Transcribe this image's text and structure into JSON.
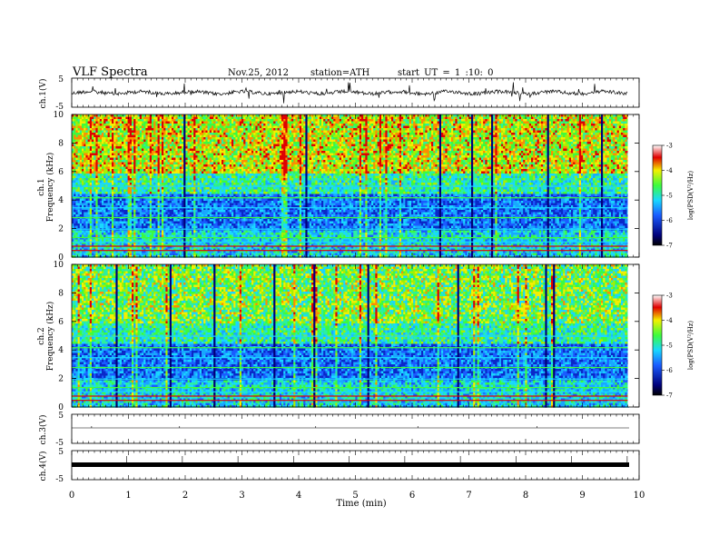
{
  "header": {
    "title": "VLF Spectra",
    "date": "Nov.25, 2012",
    "station": "station=ATH",
    "start": "start UT = 1 :10: 0"
  },
  "colors": {
    "spectrogram_dark": "#00007a",
    "spectrogram_blue": "#1a5cff",
    "spectrogram_cyan": "#19d8ff",
    "spectrogram_green": "#3dfc3d",
    "spectrogram_yellow": "#f4f000",
    "spectrogram_red": "#e00000",
    "trace": "#000000"
  },
  "chart_data": [
    {
      "type": "line",
      "panel": "ch1-waveform",
      "ylabel": "ch.1(V)",
      "ylim": [
        -5,
        5
      ],
      "yticks": [
        "5",
        "-5"
      ],
      "xlim": [
        0,
        10
      ],
      "description_series": "noisy waveform near 0 V with spikes"
    },
    {
      "type": "heatmap",
      "panel": "ch1-spectrogram",
      "ylabel": "ch.1 Frequency (kHz)",
      "ylim": [
        0,
        10
      ],
      "yticks": [
        "0",
        "2",
        "4",
        "6",
        "8",
        "10"
      ],
      "xlim": [
        0,
        9.8
      ],
      "colorbar": {
        "label": "log(PSD(V²/Hz)",
        "range": [
          -7,
          -3
        ],
        "ticks": [
          "-3",
          "-4",
          "-5",
          "-6",
          "-7"
        ]
      }
    },
    {
      "type": "heatmap",
      "panel": "ch2-spectrogram",
      "ylabel": "ch.2 Frequency (kHz)",
      "ylim": [
        0,
        10
      ],
      "yticks": [
        "0",
        "2",
        "4",
        "6",
        "8",
        "10"
      ],
      "xlim": [
        0,
        9.8
      ],
      "colorbar": {
        "label": "log(PSD(V²/Hz)",
        "range": [
          -7,
          -3
        ],
        "ticks": [
          "-3",
          "-4",
          "-5",
          "-6",
          "-7"
        ]
      }
    },
    {
      "type": "line",
      "panel": "ch3-waveform",
      "ylabel": "ch.3(V)",
      "ylim": [
        -5,
        5
      ],
      "yticks": [
        "5",
        "-5"
      ],
      "xlim": [
        0,
        10
      ]
    },
    {
      "type": "line",
      "panel": "ch4-waveform",
      "ylabel": "ch.4(V)",
      "ylim": [
        -5,
        5
      ],
      "yticks": [
        "5",
        "-5"
      ],
      "xlim": [
        0,
        10
      ]
    }
  ],
  "xaxis": {
    "label": "Time (min)",
    "ticks": [
      "0",
      "1",
      "2",
      "3",
      "4",
      "5",
      "6",
      "7",
      "8",
      "9",
      "10"
    ],
    "range": [
      0,
      10
    ]
  },
  "panels": {
    "ch1_ylabel": "ch.1(V)",
    "ch1_spec_name": "ch.1",
    "ch1_spec_freq": "Frequency (kHz)",
    "ch2_spec_name": "ch.2",
    "ch2_spec_freq": "Frequency (kHz)",
    "ch3_ylabel": "ch.3(V)",
    "ch4_ylabel": "ch.4(V)",
    "cb_label": "log(PSD(V²/Hz)"
  }
}
